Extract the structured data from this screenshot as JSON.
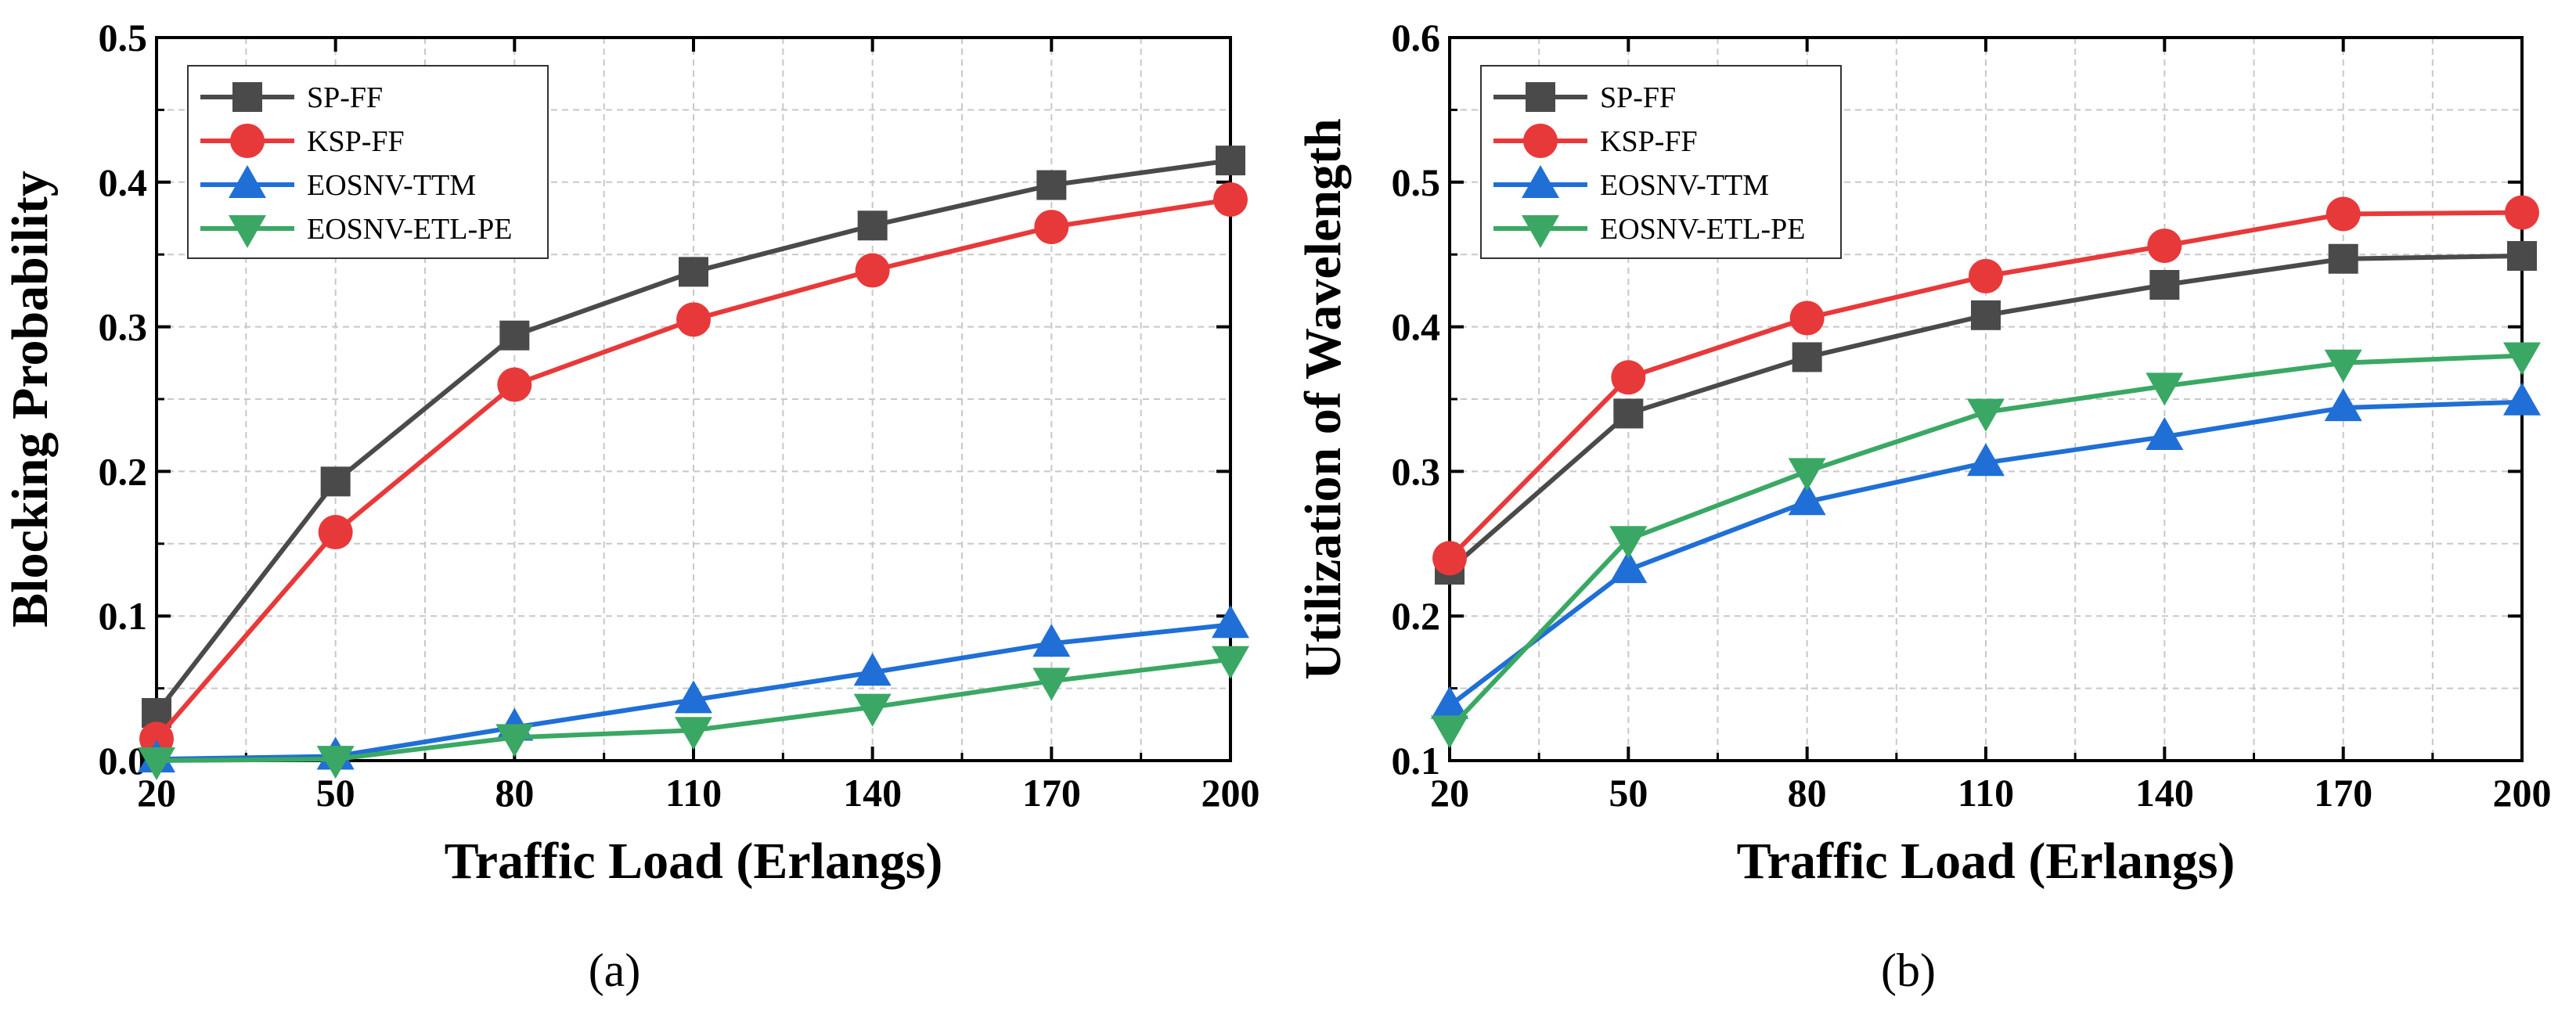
{
  "colors": {
    "SP-FF": "#4a4a4a",
    "KSP-FF": "#e8393a",
    "EOSNV-TTM": "#1f6fd6",
    "EOSNV-ETL-PE": "#3aa864"
  },
  "chart_data": [
    {
      "type": "line",
      "caption": "(a)",
      "xlabel": "Traffic Load (Erlangs)",
      "ylabel": "Blocking Probability",
      "x": [
        20,
        50,
        80,
        110,
        140,
        170,
        200
      ],
      "xlim": [
        20,
        200
      ],
      "ylim": [
        0.0,
        0.5
      ],
      "xticks": [
        "20",
        "50",
        "80",
        "110",
        "140",
        "170",
        "200"
      ],
      "yticks": [
        "0.0",
        "0.1",
        "0.2",
        "0.3",
        "0.4",
        "0.5"
      ],
      "grid": true,
      "legend_position": "top-left",
      "series": [
        {
          "name": "SP-FF",
          "marker": "square",
          "values": [
            0.033,
            0.193,
            0.294,
            0.338,
            0.37,
            0.398,
            0.415
          ]
        },
        {
          "name": "KSP-FF",
          "marker": "circle",
          "values": [
            0.015,
            0.158,
            0.26,
            0.305,
            0.339,
            0.369,
            0.388
          ]
        },
        {
          "name": "EOSNV-TTM",
          "marker": "triangle-up",
          "values": [
            0.001,
            0.003,
            0.023,
            0.042,
            0.061,
            0.081,
            0.094
          ]
        },
        {
          "name": "EOSNV-ETL-PE",
          "marker": "triangle-down",
          "values": [
            0.0,
            0.001,
            0.016,
            0.021,
            0.037,
            0.055,
            0.07
          ]
        }
      ]
    },
    {
      "type": "line",
      "caption": "(b)",
      "xlabel": "Traffic Load (Erlangs)",
      "ylabel": "Utilization of Wavelength",
      "x": [
        20,
        50,
        80,
        110,
        140,
        170,
        200
      ],
      "xlim": [
        20,
        200
      ],
      "ylim": [
        0.1,
        0.6
      ],
      "xticks": [
        "20",
        "50",
        "80",
        "110",
        "140",
        "170",
        "200"
      ],
      "yticks": [
        "0.1",
        "0.2",
        "0.3",
        "0.4",
        "0.5",
        "0.6"
      ],
      "grid": true,
      "legend_position": "top-left",
      "series": [
        {
          "name": "SP-FF",
          "marker": "square",
          "values": [
            0.232,
            0.34,
            0.379,
            0.408,
            0.429,
            0.447,
            0.449
          ]
        },
        {
          "name": "KSP-FF",
          "marker": "circle",
          "values": [
            0.24,
            0.365,
            0.406,
            0.435,
            0.456,
            0.478,
            0.479
          ]
        },
        {
          "name": "EOSNV-TTM",
          "marker": "triangle-up",
          "values": [
            0.138,
            0.232,
            0.279,
            0.306,
            0.324,
            0.344,
            0.348
          ]
        },
        {
          "name": "EOSNV-ETL-PE",
          "marker": "triangle-down",
          "values": [
            0.122,
            0.253,
            0.3,
            0.341,
            0.359,
            0.375,
            0.38
          ]
        }
      ]
    }
  ]
}
